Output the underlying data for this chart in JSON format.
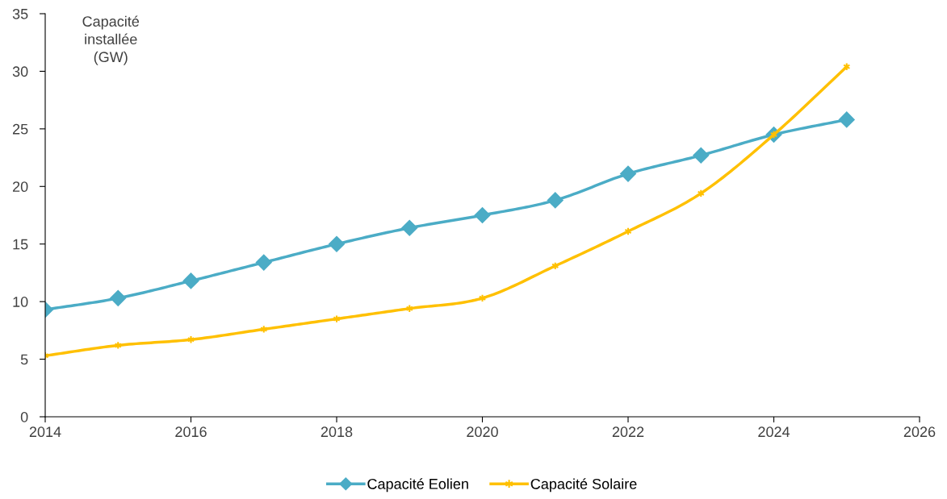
{
  "chart_data": {
    "type": "line",
    "ylabel": "Capacité\ninstallée\n(GW)",
    "x": [
      2014,
      2015,
      2016,
      2017,
      2018,
      2019,
      2020,
      2021,
      2022,
      2023,
      2024,
      2025
    ],
    "series": [
      {
        "name": "Capacité Eolien",
        "color": "#4bacc6",
        "marker": "diamond",
        "values": [
          9.3,
          10.3,
          11.8,
          13.4,
          15.0,
          16.4,
          17.5,
          18.8,
          21.1,
          22.7,
          24.5,
          25.8
        ]
      },
      {
        "name": "Capacité Solaire",
        "color": "#ffc000",
        "marker": "cross",
        "values": [
          5.3,
          6.2,
          6.7,
          7.6,
          8.5,
          9.4,
          10.3,
          13.1,
          16.1,
          19.4,
          24.5,
          30.4
        ]
      }
    ],
    "xlim": [
      2014,
      2026
    ],
    "xticks": [
      2014,
      2016,
      2018,
      2020,
      2022,
      2024,
      2026
    ],
    "ylim": [
      0,
      35
    ],
    "yticks": [
      0,
      5,
      10,
      15,
      20,
      25,
      30,
      35
    ],
    "grid": false,
    "legend": "bottom",
    "line_style": "solid"
  }
}
